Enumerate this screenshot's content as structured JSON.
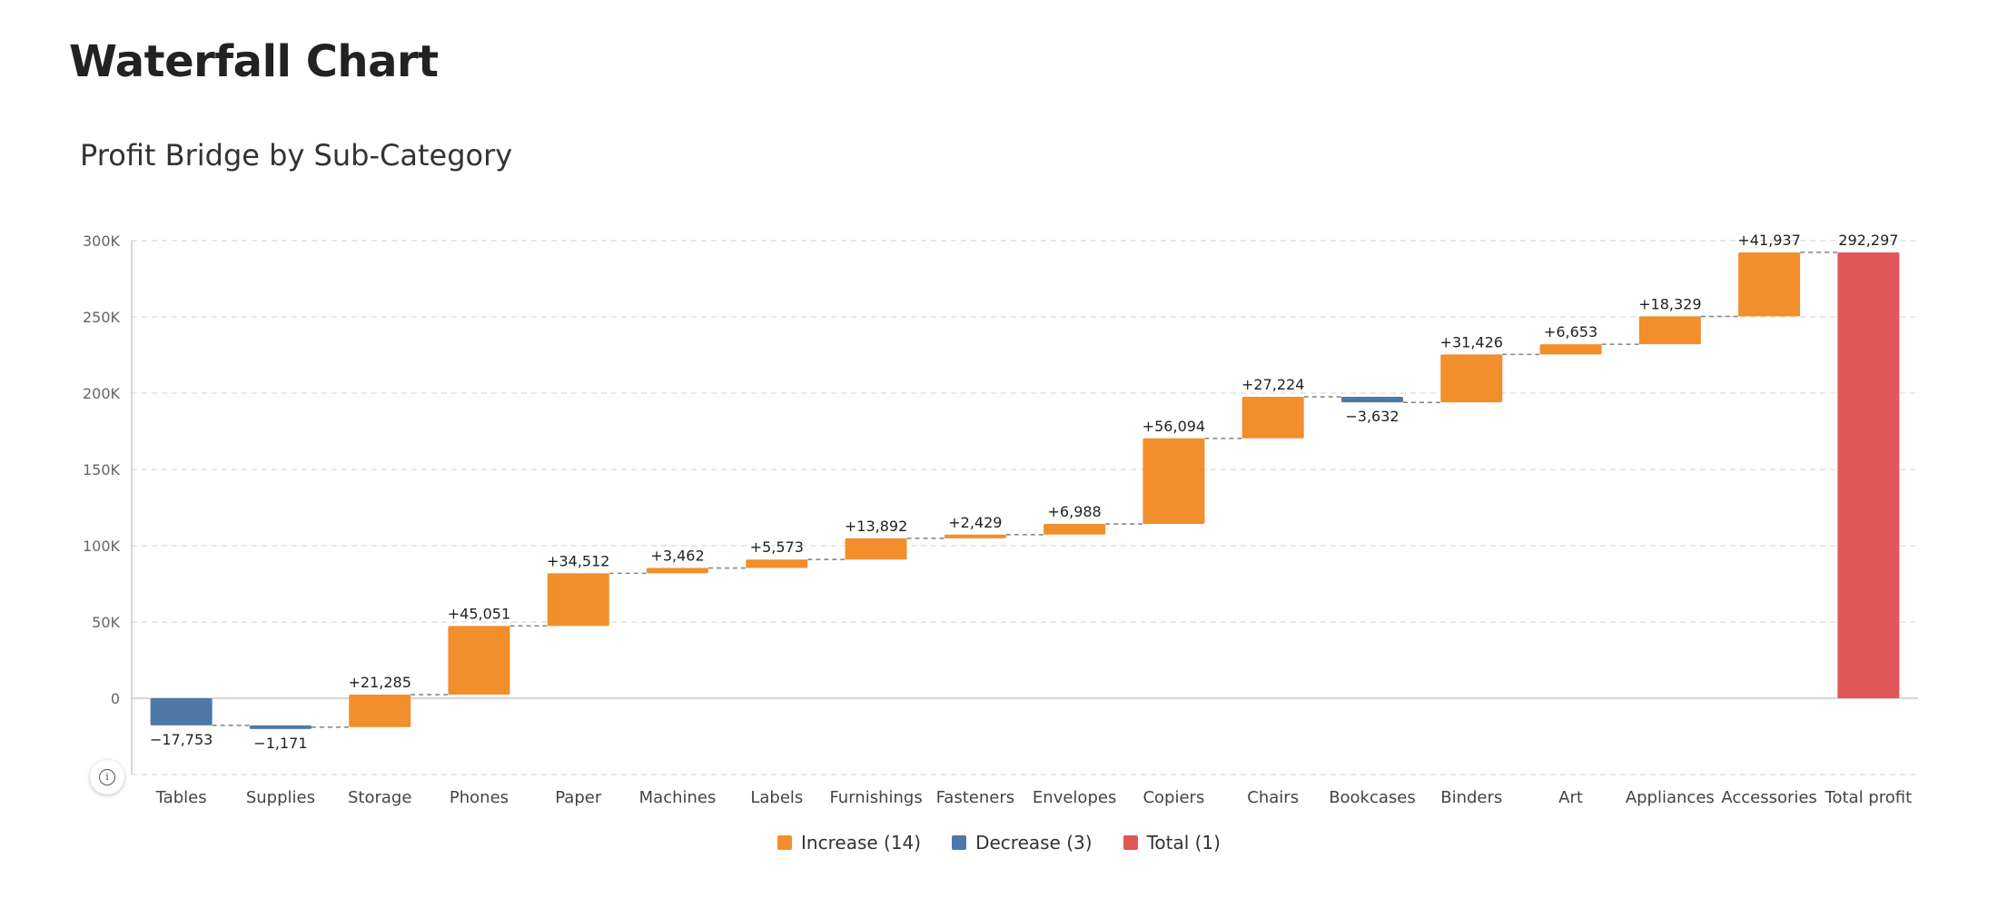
{
  "page": {
    "title": "Waterfall Chart",
    "subtitle": "Profit Bridge by Sub-Category"
  },
  "colors": {
    "increase": "#F28E2B",
    "decrease": "#4E79A7",
    "total": "#E15759",
    "gridline": "#d9d9d9",
    "connector": "#8a8a8a",
    "axis_text": "#666666"
  },
  "legend": {
    "increase_label": "Increase (14)",
    "decrease_label": "Decrease (3)",
    "total_label": "Total (1)"
  },
  "info_button": {
    "icon": "info-icon",
    "glyph": "i"
  },
  "chart_data": {
    "type": "waterfall",
    "title": "",
    "xlabel": "",
    "ylabel": "",
    "ylim": [
      -50000,
      300000
    ],
    "yticks": [
      0,
      50000,
      100000,
      150000,
      200000,
      250000,
      300000
    ],
    "ytick_labels": [
      "0",
      "50K",
      "100K",
      "150K",
      "200K",
      "250K",
      "300K"
    ],
    "grid": true,
    "legend_position": "bottom",
    "categories": [
      "Tables",
      "Supplies",
      "Storage",
      "Phones",
      "Paper",
      "Machines",
      "Labels",
      "Furnishings",
      "Fasteners",
      "Envelopes",
      "Copiers",
      "Chairs",
      "Bookcases",
      "Binders",
      "Art",
      "Appliances",
      "Accessories",
      "Total profit"
    ],
    "values": [
      -17753,
      -1171,
      21285,
      45051,
      34512,
      3462,
      5573,
      13892,
      2429,
      6988,
      56094,
      27224,
      -3632,
      31426,
      6653,
      18329,
      41937,
      292297
    ],
    "kinds": [
      "decrease",
      "decrease",
      "increase",
      "increase",
      "increase",
      "increase",
      "increase",
      "increase",
      "increase",
      "increase",
      "increase",
      "increase",
      "decrease",
      "increase",
      "increase",
      "increase",
      "increase",
      "total"
    ],
    "data_labels": [
      "−17,753",
      "−1,171",
      "+21,285",
      "+45,051",
      "+34,512",
      "+3,462",
      "+5,573",
      "+13,892",
      "+2,429",
      "+6,988",
      "+56,094",
      "+27,224",
      "−3,632",
      "+31,426",
      "+6,653",
      "+18,329",
      "+41,937",
      "292,297"
    ]
  }
}
